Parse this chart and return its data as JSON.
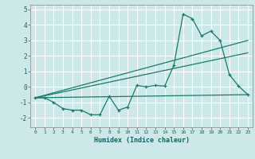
{
  "xlabel": "Humidex (Indice chaleur)",
  "ylabel": "",
  "bg_color": "#cce8e8",
  "grid_color": "#ffffff",
  "line_color": "#1a7a6e",
  "xlim": [
    -0.5,
    23.5
  ],
  "ylim": [
    -2.6,
    5.3
  ],
  "xticks": [
    0,
    1,
    2,
    3,
    4,
    5,
    6,
    7,
    8,
    9,
    10,
    11,
    12,
    13,
    14,
    15,
    16,
    17,
    18,
    19,
    20,
    21,
    22,
    23
  ],
  "yticks": [
    -2,
    -1,
    0,
    1,
    2,
    3,
    4,
    5
  ],
  "series1_x": [
    0,
    1,
    2,
    3,
    4,
    5,
    6,
    7,
    8,
    9,
    10,
    11,
    12,
    13,
    14,
    15,
    16,
    17,
    18,
    19,
    20,
    21,
    22,
    23
  ],
  "series1_y": [
    -0.7,
    -0.7,
    -1.0,
    -1.4,
    -1.5,
    -1.5,
    -1.8,
    -1.8,
    -0.6,
    -1.5,
    -1.3,
    0.1,
    0.0,
    0.1,
    0.05,
    1.4,
    4.7,
    4.4,
    3.3,
    3.6,
    3.0,
    0.8,
    0.05,
    -0.5
  ],
  "series2_x": [
    0,
    23
  ],
  "series2_y": [
    -0.7,
    -0.5
  ],
  "series3_x": [
    0,
    23
  ],
  "series3_y": [
    -0.7,
    2.2
  ],
  "series4_x": [
    0,
    23
  ],
  "series4_y": [
    -0.7,
    3.0
  ]
}
